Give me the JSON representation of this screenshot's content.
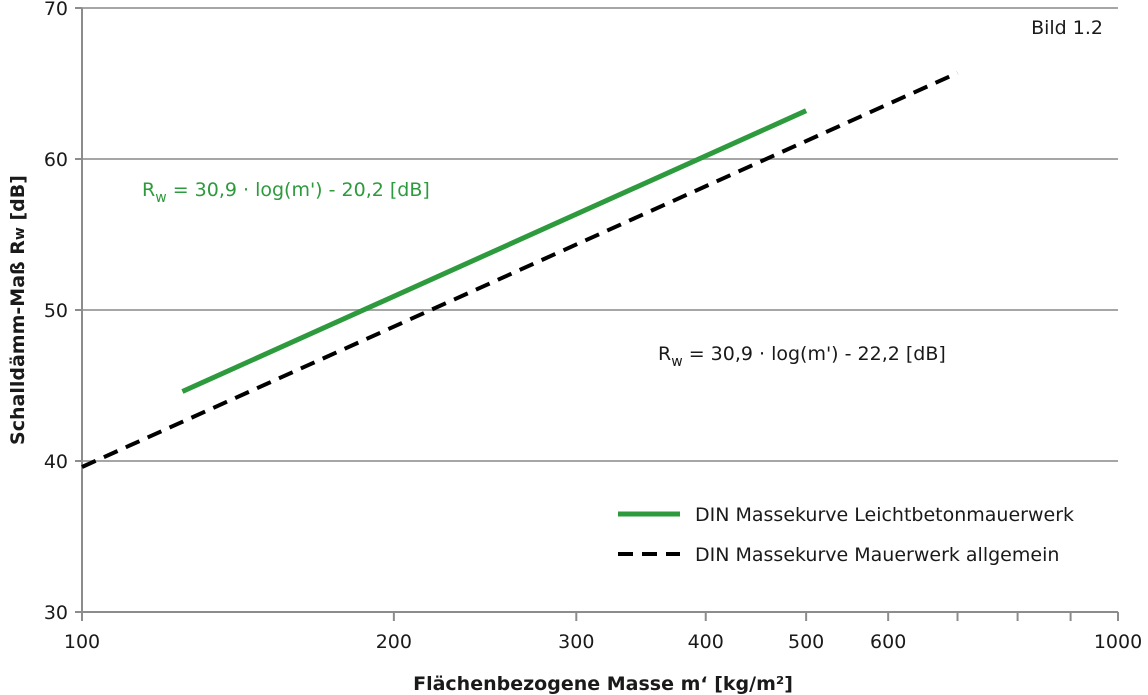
{
  "chart_data": {
    "type": "line",
    "title": "",
    "corner_label": "Bild 1.2",
    "xlabel": "Flächenbezogene Masse m‘ [kg/m²]",
    "ylabel_main": "Schalldämm-Maß R",
    "ylabel_sub": "w",
    "ylabel_unit": " [dB]",
    "x_scale": "log",
    "xlim": [
      100,
      1000
    ],
    "ylim": [
      30,
      70
    ],
    "x_ticks": [
      100,
      200,
      300,
      400,
      500,
      600,
      1000
    ],
    "x_tick_labels": [
      "100",
      "200",
      "300",
      "400",
      "500",
      "600",
      "1000"
    ],
    "x_minor_ticks": [
      700,
      800,
      900
    ],
    "y_ticks": [
      30,
      40,
      50,
      60,
      70
    ],
    "y_tick_labels": [
      "30",
      "40",
      "50",
      "60",
      "70"
    ],
    "grid": "horizontal",
    "legend_position": "bottom-right",
    "series": [
      {
        "name": "DIN Massekurve Leichtbetonmauerwerk",
        "color": "#2e9a3e",
        "style": "solid",
        "x": [
          125,
          500
        ],
        "y": [
          44.6,
          63.2
        ],
        "formula": {
          "R": "R",
          "sub": "w",
          "rest": " = 30,9 · log(m') - 20,2   [dB]"
        }
      },
      {
        "name": "DIN Massekurve Mauerwerk allgemein",
        "color": "#000000",
        "style": "dashed",
        "x": [
          100,
          700
        ],
        "y": [
          39.6,
          65.7
        ],
        "formula": {
          "R": "R",
          "sub": "w",
          "rest": " = 30,9 · log(m') - 22,2   [dB]"
        }
      }
    ]
  }
}
